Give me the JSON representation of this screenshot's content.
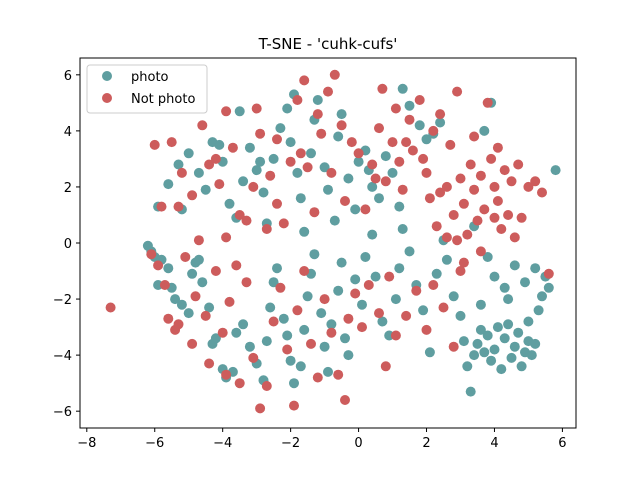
{
  "chart_data": {
    "type": "scatter",
    "title": "T-SNE - 'cuhk-cufs'",
    "xlabel": "",
    "ylabel": "",
    "xlim": [
      -8.2,
      6.4
    ],
    "ylim": [
      -6.6,
      6.6
    ],
    "xticks": [
      -8,
      -6,
      -4,
      -2,
      0,
      2,
      4,
      6
    ],
    "yticks": [
      -6,
      -4,
      -2,
      0,
      2,
      4,
      6
    ],
    "xtick_labels": [
      "−8",
      "−6",
      "−4",
      "−2",
      "0",
      "2",
      "4",
      "6"
    ],
    "ytick_labels": [
      "−6",
      "−4",
      "−2",
      "0",
      "2",
      "4",
      "6"
    ],
    "grid": false,
    "legend_position": "top-left",
    "series": [
      {
        "name": "photo",
        "color": "#5f9ea0",
        "points": [
          [
            -6.2,
            -0.1
          ],
          [
            -6.1,
            -0.3
          ],
          [
            -6.0,
            -0.5
          ],
          [
            -5.9,
            -1.5
          ],
          [
            -5.8,
            -0.6
          ],
          [
            -5.6,
            -0.9
          ],
          [
            -5.5,
            -1.6
          ],
          [
            -5.4,
            -2.0
          ],
          [
            -5.2,
            -2.2
          ],
          [
            -5.0,
            -2.5
          ],
          [
            -4.9,
            -1.1
          ],
          [
            -4.8,
            -0.7
          ],
          [
            -4.7,
            -0.6
          ],
          [
            -4.6,
            -1.4
          ],
          [
            -4.4,
            -2.3
          ],
          [
            -4.3,
            -3.6
          ],
          [
            -4.2,
            -3.4
          ],
          [
            -4.0,
            -4.5
          ],
          [
            -3.9,
            -4.8
          ],
          [
            -3.7,
            -4.6
          ],
          [
            -3.6,
            -3.2
          ],
          [
            -3.4,
            -2.9
          ],
          [
            -3.2,
            -3.7
          ],
          [
            -3.0,
            -4.3
          ],
          [
            -2.8,
            -4.9
          ],
          [
            -2.7,
            -3.5
          ],
          [
            -2.6,
            -2.3
          ],
          [
            -2.5,
            -1.4
          ],
          [
            -2.4,
            -0.9
          ],
          [
            -2.2,
            -2.7
          ],
          [
            -2.1,
            -3.3
          ],
          [
            -2.0,
            -4.2
          ],
          [
            -1.9,
            -5.0
          ],
          [
            -1.7,
            -4.4
          ],
          [
            -1.6,
            -3.1
          ],
          [
            -1.5,
            -1.9
          ],
          [
            -1.4,
            -1.1
          ],
          [
            -1.3,
            -0.4
          ],
          [
            -1.1,
            -2.5
          ],
          [
            -1.0,
            -3.7
          ],
          [
            -0.9,
            -4.6
          ],
          [
            -0.8,
            -2.9
          ],
          [
            -0.6,
            -1.7
          ],
          [
            -0.5,
            -0.7
          ],
          [
            -0.4,
            -3.4
          ],
          [
            -0.3,
            -4.0
          ],
          [
            -0.1,
            -1.3
          ],
          [
            0.1,
            -2.2
          ],
          [
            0.2,
            -0.5
          ],
          [
            0.4,
            0.3
          ],
          [
            0.5,
            -1.2
          ],
          [
            0.7,
            -2.8
          ],
          [
            0.9,
            -3.3
          ],
          [
            1.1,
            -2.0
          ],
          [
            1.2,
            -0.9
          ],
          [
            1.3,
            0.5
          ],
          [
            1.5,
            -0.3
          ],
          [
            1.7,
            -1.5
          ],
          [
            1.9,
            -2.4
          ],
          [
            2.1,
            -3.9
          ],
          [
            2.3,
            -1.1
          ],
          [
            2.5,
            0.1
          ],
          [
            2.6,
            -0.6
          ],
          [
            2.8,
            -1.9
          ],
          [
            3.0,
            -2.6
          ],
          [
            3.1,
            -3.5
          ],
          [
            3.2,
            -4.4
          ],
          [
            3.3,
            -5.3
          ],
          [
            3.4,
            -4.0
          ],
          [
            3.5,
            -3.6
          ],
          [
            3.6,
            -3.1
          ],
          [
            3.7,
            -3.9
          ],
          [
            3.8,
            -3.3
          ],
          [
            3.9,
            -4.2
          ],
          [
            4.0,
            -3.8
          ],
          [
            4.1,
            -3.0
          ],
          [
            4.2,
            -4.5
          ],
          [
            4.3,
            -3.4
          ],
          [
            4.4,
            -2.9
          ],
          [
            4.5,
            -4.1
          ],
          [
            4.6,
            -3.7
          ],
          [
            4.7,
            -3.2
          ],
          [
            4.8,
            -4.4
          ],
          [
            4.9,
            -3.9
          ],
          [
            5.0,
            -3.5
          ],
          [
            5.1,
            -4.0
          ],
          [
            5.2,
            -3.6
          ],
          [
            5.3,
            -2.4
          ],
          [
            5.4,
            -1.9
          ],
          [
            5.5,
            -1.2
          ],
          [
            5.6,
            -1.6
          ],
          [
            5.2,
            -0.9
          ],
          [
            4.9,
            -1.4
          ],
          [
            4.6,
            -0.8
          ],
          [
            4.3,
            -1.6
          ],
          [
            4.0,
            -1.2
          ],
          [
            3.8,
            -0.5
          ],
          [
            3.6,
            -2.2
          ],
          [
            4.4,
            -2.0
          ],
          [
            5.0,
            -2.8
          ],
          [
            3.4,
            0.6
          ],
          [
            -5.9,
            1.3
          ],
          [
            -5.6,
            2.1
          ],
          [
            -5.3,
            2.8
          ],
          [
            -5.0,
            3.2
          ],
          [
            -4.7,
            2.5
          ],
          [
            -4.5,
            1.9
          ],
          [
            -4.3,
            3.6
          ],
          [
            -4.0,
            2.9
          ],
          [
            -3.8,
            1.4
          ],
          [
            -3.6,
            0.9
          ],
          [
            -3.4,
            2.2
          ],
          [
            -3.2,
            3.4
          ],
          [
            -3.0,
            2.6
          ],
          [
            -2.8,
            1.8
          ],
          [
            -2.7,
            0.7
          ],
          [
            -2.5,
            3.0
          ],
          [
            -2.3,
            4.1
          ],
          [
            -2.1,
            4.8
          ],
          [
            -2.0,
            3.6
          ],
          [
            -1.8,
            2.5
          ],
          [
            -1.7,
            1.6
          ],
          [
            -1.6,
            0.4
          ],
          [
            -1.4,
            3.2
          ],
          [
            -1.3,
            4.4
          ],
          [
            -1.2,
            5.1
          ],
          [
            -1.0,
            2.7
          ],
          [
            -0.9,
            1.9
          ],
          [
            -0.7,
            0.8
          ],
          [
            -0.6,
            3.8
          ],
          [
            -0.5,
            4.6
          ],
          [
            -0.3,
            2.3
          ],
          [
            -0.1,
            1.2
          ],
          [
            0.0,
            2.9
          ],
          [
            0.2,
            3.3
          ],
          [
            0.4,
            2.0
          ],
          [
            0.6,
            1.6
          ],
          [
            0.8,
            3.1
          ],
          [
            1.0,
            2.5
          ],
          [
            1.2,
            1.3
          ],
          [
            1.3,
            5.5
          ],
          [
            1.5,
            4.9
          ],
          [
            1.8,
            4.2
          ],
          [
            2.0,
            3.7
          ],
          [
            2.2,
            3.9
          ],
          [
            2.4,
            4.3
          ],
          [
            3.7,
            4.0
          ],
          [
            3.9,
            5.0
          ],
          [
            5.8,
            2.6
          ],
          [
            -3.5,
            4.7
          ],
          [
            -4.1,
            3.5
          ],
          [
            -5.2,
            1.2
          ],
          [
            -2.9,
            2.9
          ],
          [
            -1.9,
            5.3
          ],
          [
            0.3,
            2.6
          ]
        ]
      },
      {
        "name": "Not photo",
        "color": "#cd5c5c",
        "points": [
          [
            -7.3,
            -2.3
          ],
          [
            -6.1,
            -0.4
          ],
          [
            -5.9,
            -0.8
          ],
          [
            -5.6,
            -2.7
          ],
          [
            -5.3,
            -2.9
          ],
          [
            -5.1,
            -0.5
          ],
          [
            -4.8,
            -1.9
          ],
          [
            -4.5,
            -2.6
          ],
          [
            -4.2,
            -1.0
          ],
          [
            -4.0,
            -3.2
          ],
          [
            -3.8,
            -2.1
          ],
          [
            -3.6,
            -0.8
          ],
          [
            -3.3,
            -1.4
          ],
          [
            -3.1,
            -4.1
          ],
          [
            -2.9,
            -5.9
          ],
          [
            -2.7,
            -5.1
          ],
          [
            -2.5,
            -2.8
          ],
          [
            -2.3,
            -1.6
          ],
          [
            -2.1,
            -3.8
          ],
          [
            -1.9,
            -5.8
          ],
          [
            -1.8,
            -2.4
          ],
          [
            -1.6,
            -1.0
          ],
          [
            -1.4,
            -3.6
          ],
          [
            -1.2,
            -4.8
          ],
          [
            -1.0,
            -2.0
          ],
          [
            -0.8,
            -3.2
          ],
          [
            -0.6,
            -4.7
          ],
          [
            -0.4,
            -5.6
          ],
          [
            -0.3,
            -2.7
          ],
          [
            -0.1,
            -1.8
          ],
          [
            0.1,
            -3.0
          ],
          [
            0.3,
            -1.5
          ],
          [
            0.6,
            -2.5
          ],
          [
            0.9,
            -1.2
          ],
          [
            1.1,
            -3.3
          ],
          [
            1.4,
            -2.6
          ],
          [
            1.7,
            -1.7
          ],
          [
            2.0,
            -3.1
          ],
          [
            2.2,
            -1.5
          ],
          [
            2.5,
            -2.3
          ],
          [
            2.8,
            -3.7
          ],
          [
            3.0,
            -1.0
          ],
          [
            0.8,
            -4.4
          ],
          [
            -4.9,
            -3.6
          ],
          [
            -4.4,
            -4.3
          ],
          [
            -3.9,
            -4.7
          ],
          [
            -3.5,
            -5.0
          ],
          [
            -5.4,
            -3.1
          ],
          [
            -5.7,
            -1.5
          ],
          [
            -6.0,
            3.5
          ],
          [
            -5.8,
            1.3
          ],
          [
            -5.5,
            3.6
          ],
          [
            -5.2,
            2.5
          ],
          [
            -4.9,
            1.7
          ],
          [
            -4.6,
            4.2
          ],
          [
            -4.4,
            2.8
          ],
          [
            -4.1,
            2.1
          ],
          [
            -3.9,
            4.7
          ],
          [
            -3.7,
            3.4
          ],
          [
            -3.5,
            1.0
          ],
          [
            -3.3,
            0.8
          ],
          [
            -3.1,
            2.0
          ],
          [
            -2.9,
            3.9
          ],
          [
            -2.6,
            2.4
          ],
          [
            -2.4,
            1.4
          ],
          [
            -2.2,
            0.7
          ],
          [
            -2.0,
            2.9
          ],
          [
            -1.8,
            5.1
          ],
          [
            -1.6,
            5.8
          ],
          [
            -1.5,
            2.7
          ],
          [
            -1.3,
            1.1
          ],
          [
            -1.1,
            3.9
          ],
          [
            -0.9,
            5.4
          ],
          [
            -0.7,
            6.0
          ],
          [
            -0.5,
            4.2
          ],
          [
            -0.4,
            1.5
          ],
          [
            -0.2,
            3.6
          ],
          [
            0.0,
            3.2
          ],
          [
            0.2,
            1.2
          ],
          [
            0.4,
            2.8
          ],
          [
            0.6,
            4.1
          ],
          [
            0.8,
            2.2
          ],
          [
            1.0,
            3.6
          ],
          [
            1.2,
            2.9
          ],
          [
            1.3,
            1.9
          ],
          [
            1.5,
            4.4
          ],
          [
            1.6,
            3.3
          ],
          [
            1.8,
            5.1
          ],
          [
            2.0,
            2.5
          ],
          [
            2.1,
            1.6
          ],
          [
            2.3,
            0.6
          ],
          [
            2.4,
            4.6
          ],
          [
            2.6,
            2.0
          ],
          [
            2.7,
            3.5
          ],
          [
            2.8,
            1.0
          ],
          [
            2.9,
            5.4
          ],
          [
            3.0,
            2.3
          ],
          [
            3.1,
            1.4
          ],
          [
            3.2,
            0.3
          ],
          [
            3.3,
            2.8
          ],
          [
            3.4,
            1.9
          ],
          [
            3.5,
            0.8
          ],
          [
            3.6,
            2.4
          ],
          [
            3.7,
            1.2
          ],
          [
            3.8,
            5.0
          ],
          [
            3.9,
            3.0
          ],
          [
            4.0,
            2.0
          ],
          [
            4.1,
            1.5
          ],
          [
            4.2,
            0.5
          ],
          [
            4.3,
            2.6
          ],
          [
            4.4,
            1.0
          ],
          [
            4.5,
            2.2
          ],
          [
            4.6,
            0.2
          ],
          [
            4.8,
            0.9
          ],
          [
            5.0,
            2.0
          ],
          [
            5.2,
            2.2
          ],
          [
            5.4,
            1.8
          ],
          [
            5.6,
            -1.1
          ],
          [
            3.1,
            -0.7
          ],
          [
            2.6,
            0.2
          ],
          [
            2.2,
            4.0
          ],
          [
            1.9,
            3.0
          ],
          [
            1.4,
            3.6
          ],
          [
            0.5,
            2.3
          ],
          [
            -0.8,
            2.5
          ],
          [
            -1.7,
            3.2
          ],
          [
            -2.7,
            0.5
          ],
          [
            -3.9,
            0.2
          ],
          [
            -4.7,
            0.1
          ],
          [
            -5.3,
            1.3
          ],
          [
            -4.2,
            3.0
          ],
          [
            -3.0,
            4.8
          ],
          [
            -2.4,
            3.7
          ],
          [
            -1.2,
            4.6
          ],
          [
            0.7,
            5.5
          ],
          [
            1.1,
            4.8
          ],
          [
            3.4,
            3.8
          ],
          [
            4.1,
            3.4
          ],
          [
            4.7,
            2.8
          ],
          [
            2.9,
            0.1
          ],
          [
            3.6,
            -0.3
          ],
          [
            4.0,
            0.9
          ],
          [
            2.4,
            1.8
          ]
        ]
      }
    ]
  }
}
